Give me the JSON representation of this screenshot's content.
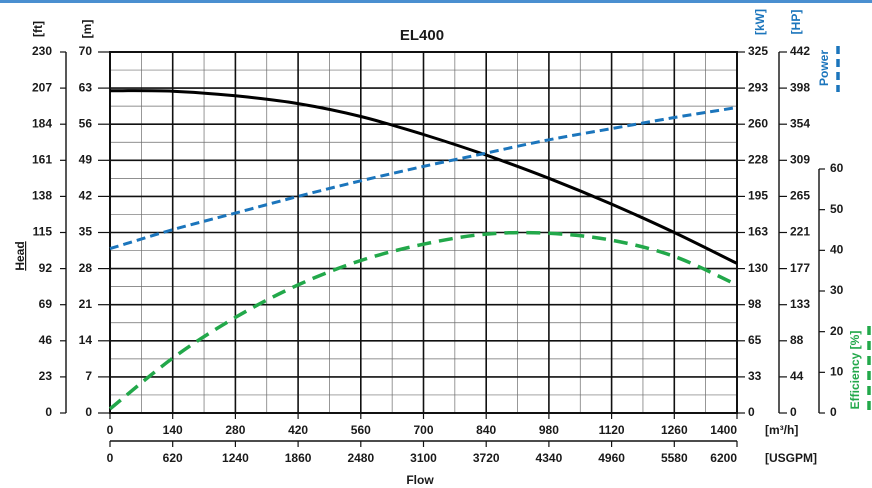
{
  "chart_data": {
    "type": "line",
    "title": "EL400",
    "xlabel": "Flow",
    "x_primary": {
      "unit": "[m³/h]",
      "range": [
        0,
        1400
      ],
      "ticks": [
        "0",
        "140",
        "280",
        "420",
        "560",
        "700",
        "840",
        "980",
        "1120",
        "1260",
        "1400"
      ]
    },
    "x_secondary": {
      "unit": "[USGPM]",
      "ticks": [
        "0",
        "620",
        "1240",
        "1860",
        "2480",
        "3100",
        "3720",
        "4340",
        "4960",
        "5580",
        "6200"
      ]
    },
    "y_head": {
      "label": "Head",
      "range_m": [
        0,
        70
      ],
      "ticks_ft": [
        "0",
        "23",
        "46",
        "69",
        "92",
        "115",
        "138",
        "161",
        "184",
        "207",
        "230"
      ],
      "unit_ft": "[ft]",
      "ticks_m": [
        "0",
        "7",
        "14",
        "21",
        "28",
        "35",
        "42",
        "49",
        "56",
        "63",
        "70"
      ],
      "unit_m": "[m]"
    },
    "y_power": {
      "label": "Power",
      "range_kw": [
        0,
        325
      ],
      "ticks_kw": [
        "0",
        "33",
        "65",
        "98",
        "130",
        "163",
        "195",
        "228",
        "260",
        "293",
        "325"
      ],
      "unit_kw": "[kW]",
      "ticks_hp": [
        "0",
        "44",
        "88",
        "133",
        "177",
        "221",
        "265",
        "309",
        "354",
        "398",
        "442"
      ],
      "unit_hp": "[HP]"
    },
    "y_efficiency": {
      "label": "Efficiency [%]",
      "range": [
        0,
        60
      ],
      "ticks": [
        "0",
        "10",
        "20",
        "30",
        "40",
        "50",
        "60"
      ]
    },
    "grid": true,
    "series": [
      {
        "name": "Head",
        "axis": "head_m",
        "color": "#000000",
        "style": "solid",
        "x": [
          0,
          140,
          280,
          420,
          560,
          700,
          840,
          980,
          1120,
          1260,
          1400
        ],
        "y": [
          62.5,
          62.4,
          61.5,
          60,
          57.5,
          54,
          50,
          45.5,
          40.5,
          35,
          29
        ]
      },
      {
        "name": "Power",
        "axis": "power_kw",
        "color": "#1b75bc",
        "style": "dashed",
        "x": [
          0,
          140,
          280,
          420,
          560,
          700,
          840,
          980,
          1120,
          1260,
          1400
        ],
        "y": [
          148,
          165,
          180,
          195,
          209,
          222,
          234,
          246,
          256,
          266,
          275
        ]
      },
      {
        "name": "Efficiency",
        "axis": "efficiency",
        "color": "#22a84a",
        "style": "dashed",
        "x": [
          0,
          140,
          280,
          420,
          560,
          700,
          840,
          980,
          1120,
          1260,
          1400
        ],
        "y": [
          1,
          13.5,
          23.5,
          31.5,
          37.5,
          41.5,
          44,
          44.2,
          42.5,
          38.5,
          31.5
        ]
      }
    ]
  }
}
